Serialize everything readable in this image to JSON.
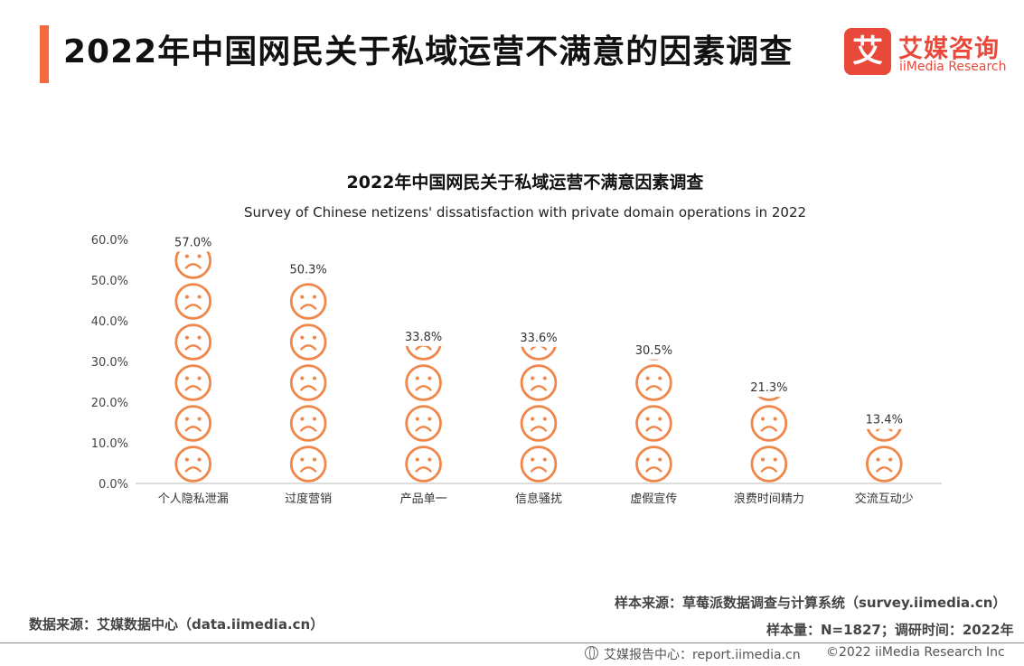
{
  "header": {
    "title": "2022年中国网民关于私域运营不满意的因素调查",
    "accent_color": "#f26a3d"
  },
  "logo": {
    "mark": "艾",
    "name_cn": "艾媒咨询",
    "name_en": "iiMedia Research",
    "color": "#e8493a"
  },
  "chart_data": {
    "type": "bar",
    "title": "2022年中国网民关于私域运营不满意因素调查",
    "subtitle": "Survey of Chinese netizens' dissatisfaction with private domain operations in 2022",
    "categories": [
      "个人隐私泄漏",
      "过度营销",
      "产品单一",
      "信息骚扰",
      "虚假宣传",
      "浪费时间精力",
      "交流互动少"
    ],
    "values": [
      57.0,
      50.3,
      33.8,
      33.6,
      30.5,
      21.3,
      13.4
    ],
    "value_labels": [
      "57.0%",
      "50.3%",
      "33.8%",
      "33.6%",
      "30.5%",
      "21.3%",
      "13.4%"
    ],
    "y_ticks": [
      "0.0%",
      "10.0%",
      "20.0%",
      "30.0%",
      "40.0%",
      "50.0%",
      "60.0%"
    ],
    "ylim": [
      0,
      60
    ],
    "icon": "sad-face-icon",
    "icon_unit": 10,
    "bar_color": "#f0874a",
    "grid": false
  },
  "footer": {
    "data_source": "数据来源：艾媒数据中心（data.iimedia.cn）",
    "sample_source": "样本来源：草莓派数据调查与计算系统（survey.iimedia.cn）",
    "sample_info": "样本量：N=1827；调研时间：2022年",
    "report_center": "艾媒报告中心：report.iimedia.cn",
    "copyright": "©2022  iiMedia Research  Inc"
  }
}
